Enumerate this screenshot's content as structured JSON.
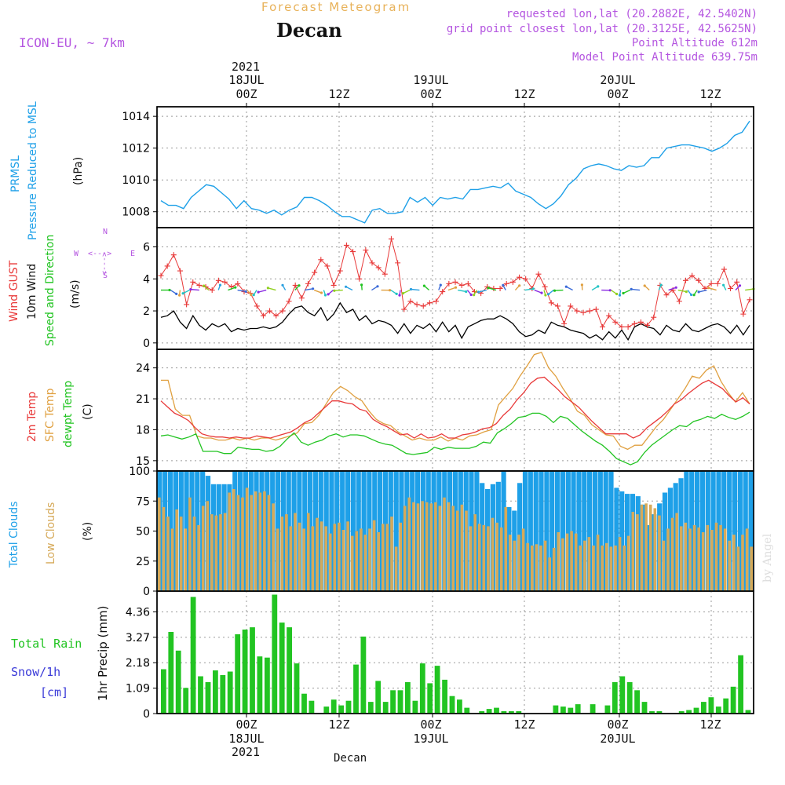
{
  "header": {
    "title": "Forecast Meteogram",
    "place": "Decan",
    "model": "ICON-EU, ~ 7km",
    "requested": "requested lon,lat (20.2882E, 42.5402N)",
    "gridpoint": "grid point closest lon,lat (20.3125E, 42.5625N)",
    "altitude": "Point Altitude 612m",
    "model_altitude": "Model Point Altitude 639.75m"
  },
  "top_axis": {
    "year": "2021",
    "labels": [
      {
        "date": "18JUL",
        "time": "00Z"
      },
      {
        "date": "",
        "time": "12Z"
      },
      {
        "date": "19JUL",
        "time": "00Z"
      },
      {
        "date": "",
        "time": "12Z"
      },
      {
        "date": "20JUL",
        "time": "00Z"
      },
      {
        "date": "",
        "time": "12Z"
      }
    ]
  },
  "footer": {
    "station": "Decan",
    "watermark": "by Angel"
  },
  "compass": {
    "n": "N",
    "s": "S",
    "w": "W",
    "e": "E",
    "arrows": "<--->"
  },
  "panel_labels": {
    "p1": [
      "PRMSL",
      "Pressure Reduced to MSL",
      "(hPa)"
    ],
    "p2": [
      "Wind GUST",
      "10m Wind",
      "Speed and Direction",
      "(m/s)"
    ],
    "p3": [
      "2m Temp",
      "SFC Temp",
      "dewpt Temp",
      "(C)"
    ],
    "p4": [
      "Total Clouds",
      "Low Clouds",
      "(%)"
    ],
    "p5": [
      "Total  Rain",
      "Snow/1h",
      "[cm]",
      "1hr Precip (mm)"
    ]
  },
  "colors": {
    "pressure": "#1ea0e8",
    "gust": "#e83838",
    "wind": "#000000",
    "temp2m": "#e83838",
    "sfc": "#e0a040",
    "dew": "#22c422",
    "tcloud": "#1ea0e8",
    "lcloud": "#d6aa5a",
    "rain": "#22c422",
    "snow": "#3a3ad8",
    "purple": "#b455e0"
  },
  "chart_data": [
    {
      "type": "line",
      "name": "PRMSL",
      "ylim": [
        1007,
        1014.6
      ],
      "yticks": [
        1008,
        1010,
        1012,
        1014
      ],
      "x_hours_from_18JUL00Z": [
        -11,
        66
      ],
      "values": [
        1008.7,
        1008.4,
        1008.4,
        1008.2,
        1008.9,
        1009.3,
        1009.7,
        1009.6,
        1009.2,
        1008.8,
        1008.2,
        1008.7,
        1008.2,
        1008.1,
        1007.9,
        1008.1,
        1007.8,
        1008.1,
        1008.3,
        1008.9,
        1008.9,
        1008.7,
        1008.4,
        1008.0,
        1007.7,
        1007.7,
        1007.5,
        1007.3,
        1008.1,
        1008.2,
        1007.9,
        1007.9,
        1008.0,
        1008.9,
        1008.6,
        1008.9,
        1008.4,
        1008.9,
        1008.8,
        1008.9,
        1008.8,
        1009.4,
        1009.4,
        1009.5,
        1009.6,
        1009.5,
        1009.8,
        1009.3,
        1009.1,
        1008.9,
        1008.5,
        1008.2,
        1008.5,
        1009.0,
        1009.7,
        1010.1,
        1010.7,
        1010.9,
        1011.0,
        1010.9,
        1010.7,
        1010.6,
        1010.9,
        1010.8,
        1010.9,
        1011.4,
        1011.4,
        1012.0,
        1012.1,
        1012.2,
        1012.2,
        1012.1,
        1012.0,
        1011.8,
        1012.0,
        1012.3,
        1012.8,
        1013.0,
        1013.7
      ]
    },
    {
      "type": "line",
      "name": "Wind",
      "ylim": [
        -0.4,
        7.2
      ],
      "yticks": [
        0,
        2,
        4,
        6
      ],
      "gust": [
        4.2,
        4.8,
        5.5,
        4.5,
        2.4,
        3.8,
        3.6,
        3.5,
        3.3,
        3.9,
        3.8,
        3.5,
        3.7,
        3.2,
        3.1,
        2.3,
        1.7,
        2.0,
        1.7,
        2.0,
        2.6,
        3.6,
        2.8,
        3.7,
        4.4,
        5.2,
        4.8,
        3.6,
        4.5,
        6.1,
        5.7,
        4.0,
        5.8,
        5.0,
        4.7,
        4.3,
        6.5,
        5.0,
        2.1,
        2.6,
        2.4,
        2.3,
        2.5,
        2.6,
        3.2,
        3.7,
        3.8,
        3.6,
        3.7,
        3.2,
        3.1,
        3.5,
        3.4,
        3.4,
        3.7,
        3.8,
        4.1,
        4.0,
        3.4,
        4.3,
        3.5,
        2.5,
        2.3,
        1.2,
        2.3,
        2.0,
        1.9,
        2.0,
        2.1,
        1.0,
        1.7,
        1.3,
        1.0,
        1.0,
        1.2,
        1.3,
        1.1,
        1.6,
        3.6,
        3.0,
        3.3,
        2.6,
        3.9,
        4.2,
        3.9,
        3.4,
        3.7,
        3.7,
        4.6,
        3.4,
        3.8,
        1.8,
        2.7
      ],
      "wind": [
        1.6,
        1.7,
        2.0,
        1.3,
        0.9,
        1.7,
        1.1,
        0.8,
        1.2,
        1.0,
        1.2,
        0.7,
        0.9,
        0.8,
        0.9,
        0.9,
        1.0,
        0.9,
        1.0,
        1.3,
        1.8,
        2.2,
        2.3,
        1.9,
        1.7,
        2.2,
        1.4,
        1.8,
        2.5,
        1.9,
        2.1,
        1.4,
        1.7,
        1.2,
        1.4,
        1.3,
        1.1,
        0.6,
        1.2,
        0.6,
        1.1,
        0.9,
        1.2,
        0.7,
        1.3,
        0.7,
        1.1,
        0.3,
        1.0,
        1.2,
        1.4,
        1.5,
        1.5,
        1.7,
        1.5,
        1.2,
        0.7,
        0.4,
        0.5,
        0.8,
        0.6,
        1.3,
        1.1,
        1.0,
        0.8,
        0.7,
        0.6,
        0.3,
        0.5,
        0.2,
        0.7,
        0.3,
        0.8,
        0.2,
        1.0,
        1.2,
        1.0,
        0.9,
        0.5,
        1.1,
        0.8,
        0.7,
        1.2,
        0.8,
        0.7,
        0.9,
        1.1,
        1.2,
        1.0,
        0.6,
        1.1,
        0.5,
        1.1
      ]
    },
    {
      "type": "line",
      "name": "Temperature",
      "ylim": [
        14.0,
        25.8
      ],
      "yticks": [
        15,
        18,
        21,
        24
      ],
      "temp2m": [
        20.8,
        20.2,
        19.6,
        19.3,
        18.9,
        18.2,
        17.6,
        17.4,
        17.3,
        17.3,
        17.2,
        17.3,
        17.2,
        17.2,
        17.4,
        17.3,
        17.2,
        17.4,
        17.6,
        17.8,
        18.2,
        18.7,
        19.0,
        19.6,
        20.2,
        20.8,
        20.8,
        20.6,
        20.5,
        20.0,
        19.8,
        19.0,
        18.6,
        18.3,
        17.9,
        17.5,
        17.6,
        17.2,
        17.6,
        17.2,
        17.3,
        17.6,
        17.2,
        17.2,
        17.5,
        17.6,
        17.8,
        18.1,
        18.2,
        18.6,
        19.4,
        20.0,
        20.9,
        21.6,
        22.5,
        23.0,
        23.1,
        22.5,
        21.9,
        21.2,
        20.7,
        20.2,
        19.5,
        18.8,
        18.2,
        17.6,
        17.6,
        17.6,
        17.6,
        17.2,
        17.5,
        18.2,
        18.7,
        19.2,
        19.8,
        20.5,
        20.9,
        21.5,
        22.0,
        22.5,
        22.8,
        22.4,
        22.0,
        21.3,
        20.7,
        21.1,
        20.5
      ],
      "sfc": [
        22.8,
        22.8,
        20.0,
        19.4,
        19.4,
        17.4,
        17.2,
        17.2,
        17.0,
        17.0,
        17.2,
        17.0,
        17.2,
        17.0,
        17.2,
        17.2,
        17.0,
        17.2,
        17.4,
        17.7,
        18.6,
        18.7,
        19.4,
        20.5,
        21.6,
        22.2,
        21.8,
        21.2,
        20.8,
        19.8,
        19.0,
        18.6,
        18.4,
        17.8,
        17.4,
        17.0,
        17.2,
        17.0,
        17.0,
        17.3,
        16.9,
        17.2,
        17.0,
        17.4,
        17.5,
        17.8,
        18.0,
        20.4,
        21.2,
        22.0,
        23.2,
        24.2,
        25.3,
        25.5,
        24.0,
        23.2,
        22.0,
        21.0,
        19.8,
        19.4,
        18.5,
        18.0,
        17.5,
        17.4,
        16.4,
        16.1,
        16.5,
        16.5,
        17.4,
        18.3,
        19.0,
        20.0,
        21.0,
        22.0,
        23.2,
        23.0,
        23.8,
        24.2,
        22.7,
        21.6,
        20.7,
        21.6,
        20.5
      ],
      "dew": [
        17.4,
        17.5,
        17.3,
        17.1,
        17.3,
        17.6,
        15.9,
        15.9,
        15.9,
        15.7,
        15.7,
        16.3,
        16.2,
        16.1,
        16.1,
        15.9,
        16.0,
        16.4,
        17.1,
        17.7,
        16.8,
        16.5,
        16.8,
        17.0,
        17.4,
        17.6,
        17.3,
        17.5,
        17.5,
        17.4,
        17.1,
        16.8,
        16.6,
        16.5,
        16.1,
        15.7,
        15.6,
        15.7,
        15.8,
        16.3,
        16.1,
        16.3,
        16.2,
        16.2,
        16.2,
        16.4,
        16.8,
        16.7,
        17.7,
        18.1,
        18.6,
        19.2,
        19.3,
        19.6,
        19.6,
        19.3,
        18.7,
        19.3,
        19.1,
        18.5,
        17.9,
        17.4,
        16.9,
        16.5,
        15.9,
        15.2,
        14.9,
        14.6,
        14.9,
        15.8,
        16.5,
        17.0,
        17.5,
        18.0,
        18.4,
        18.3,
        18.8,
        19.0,
        19.3,
        19.1,
        19.5,
        19.2,
        19.0,
        19.3,
        19.7
      ]
    },
    {
      "type": "bar",
      "name": "Clouds",
      "ylim": [
        0,
        100
      ],
      "yticks": [
        0,
        25,
        50,
        75,
        100
      ],
      "total": [
        100,
        100,
        100,
        100,
        100,
        100,
        100,
        100,
        100,
        96,
        89,
        89,
        89,
        89,
        100,
        100,
        100,
        100,
        100,
        100,
        100,
        100,
        100,
        100,
        100,
        100,
        100,
        100,
        100,
        100,
        100,
        100,
        100,
        100,
        100,
        100,
        100,
        100,
        100,
        100,
        100,
        100,
        100,
        100,
        100,
        100,
        100,
        100,
        100,
        100,
        100,
        100,
        100,
        100,
        100,
        100,
        100,
        100,
        100,
        100,
        90,
        85,
        89,
        91,
        100,
        70,
        67,
        90,
        100,
        100,
        100,
        100,
        100,
        100,
        100,
        100,
        100,
        100,
        100,
        100,
        100,
        100,
        100,
        100,
        100,
        86,
        83,
        81,
        81,
        79,
        72,
        55,
        64,
        73,
        82,
        86,
        90,
        94,
        100,
        100,
        100,
        100,
        100,
        100,
        100,
        100,
        100,
        100,
        100,
        100,
        100
      ],
      "low": [
        78,
        70,
        62,
        52,
        68,
        62,
        52,
        78,
        62,
        55,
        71,
        75,
        64,
        63,
        64,
        65,
        82,
        85,
        80,
        78,
        86,
        80,
        83,
        82,
        83,
        80,
        73,
        52,
        62,
        64,
        54,
        65,
        57,
        52,
        65,
        54,
        61,
        58,
        54,
        48,
        56,
        57,
        51,
        58,
        46,
        50,
        52,
        47,
        52,
        59,
        49,
        56,
        56,
        62,
        37,
        57,
        71,
        78,
        74,
        73,
        75,
        74,
        73,
        74,
        71,
        78,
        74,
        71,
        67,
        72,
        67,
        54,
        64,
        56,
        55,
        54,
        61,
        57,
        53,
        70,
        47,
        42,
        47,
        52,
        40,
        38,
        39,
        38,
        42,
        28,
        36,
        49,
        44,
        48,
        50,
        48,
        38,
        42,
        45,
        38,
        47,
        38,
        40,
        37,
        38,
        45,
        38,
        46,
        66,
        64,
        72,
        73,
        72,
        69,
        63,
        42,
        52,
        61,
        65,
        54,
        57,
        52,
        55,
        53,
        49,
        55,
        51,
        57,
        55,
        52,
        42,
        47,
        37,
        47,
        52,
        37
      ]
    },
    {
      "type": "bar",
      "name": "Precip",
      "ylim": [
        0,
        5.25
      ],
      "yticks": [
        0,
        1.09,
        2.18,
        3.27,
        4.36
      ],
      "values": [
        1.9,
        3.5,
        2.7,
        1.1,
        5.0,
        1.6,
        1.35,
        1.85,
        1.65,
        1.8,
        3.4,
        3.6,
        3.7,
        2.45,
        2.4,
        5.1,
        3.9,
        3.7,
        2.15,
        0.85,
        0.55,
        0,
        0.3,
        0.6,
        0.35,
        0.55,
        2.1,
        3.3,
        0.5,
        1.4,
        0.5,
        1.0,
        1.0,
        1.35,
        0.55,
        2.15,
        1.3,
        2.05,
        1.45,
        0.75,
        0.6,
        0.25,
        0,
        0.1,
        0.2,
        0.25,
        0.1,
        0.1,
        0.1,
        0,
        0,
        0,
        0,
        0.35,
        0.3,
        0.25,
        0.4,
        0,
        0.4,
        0,
        0.35,
        1.35,
        1.6,
        1.35,
        1.0,
        0.5,
        0.1,
        0.1,
        0,
        0,
        0.1,
        0.15,
        0.25,
        0.5,
        0.7,
        0.3,
        0.65,
        1.15,
        2.5,
        0.15
      ]
    }
  ]
}
